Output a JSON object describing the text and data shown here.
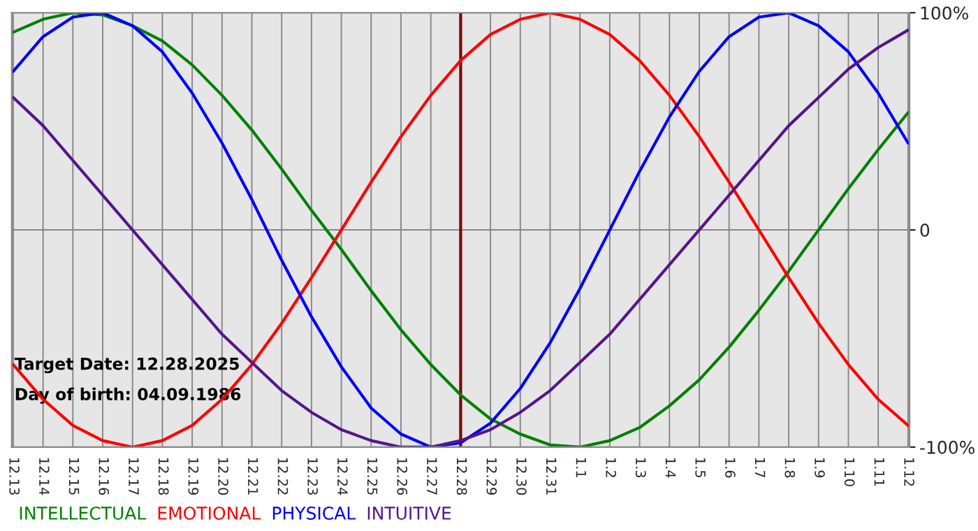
{
  "chart_data": {
    "type": "line",
    "categories": [
      "12.13",
      "12.14",
      "12.15",
      "12.16",
      "12.17",
      "12.18",
      "12.19",
      "12.20",
      "12.21",
      "12.22",
      "12.23",
      "12.24",
      "12.25",
      "12.26",
      "12.27",
      "12.28",
      "12.29",
      "12.30",
      "12.31",
      "1.1",
      "1.2",
      "1.3",
      "1.4",
      "1.5",
      "1.6",
      "1.7",
      "1.8",
      "1.9",
      "1.10",
      "1.11",
      "1.12"
    ],
    "series": [
      {
        "name": "INTELLECTUAL",
        "color": "#008000",
        "values": [
          91,
          97,
          100,
          99,
          94,
          87,
          76,
          62,
          46,
          28,
          9,
          -9,
          -28,
          -46,
          -62,
          -76,
          -87,
          -94,
          -99,
          -100,
          -97,
          -91,
          -81,
          -69,
          -54,
          -37,
          -19,
          0,
          19,
          37,
          54
        ]
      },
      {
        "name": "EMOTIONAL",
        "color": "#ff0000",
        "values": [
          -62,
          -78,
          -90,
          -97,
          -100,
          -97,
          -90,
          -78,
          -62,
          -43,
          -22,
          0,
          22,
          43,
          62,
          78,
          90,
          97,
          100,
          97,
          90,
          78,
          62,
          43,
          22,
          0,
          -22,
          -43,
          -62,
          -78,
          -90
        ]
      },
      {
        "name": "PHYSICAL",
        "color": "#0000ff",
        "values": [
          73,
          89,
          98,
          100,
          94,
          82,
          63,
          40,
          14,
          -14,
          -40,
          -63,
          -82,
          -94,
          -100,
          -98,
          -89,
          -73,
          -52,
          -27,
          0,
          27,
          52,
          73,
          89,
          98,
          100,
          94,
          82,
          63,
          40
        ]
      },
      {
        "name": "INTUITIVE",
        "color": "#55158c",
        "values": [
          61,
          48,
          32,
          16,
          0,
          -16,
          -32,
          -48,
          -61,
          -74,
          -84,
          -92,
          -97,
          -100,
          -100,
          -97,
          -92,
          -84,
          -74,
          -61,
          -48,
          -32,
          -16,
          0,
          16,
          32,
          48,
          61,
          74,
          84,
          92
        ]
      }
    ],
    "ylim": [
      -100,
      100
    ],
    "yticks": [
      {
        "value": 100,
        "label": "100%"
      },
      0,
      {
        "value": -100,
        "label": "-100%"
      }
    ],
    "ref_lines": [
      {
        "axis": "x",
        "value": "12.28",
        "color": "#800000"
      }
    ],
    "annotations": [
      "Target Date: 12.28.2025",
      "Day of birth: 04.09.1986"
    ],
    "grid": true,
    "legend": "bottom",
    "marker": "none",
    "line_style": "solid"
  }
}
